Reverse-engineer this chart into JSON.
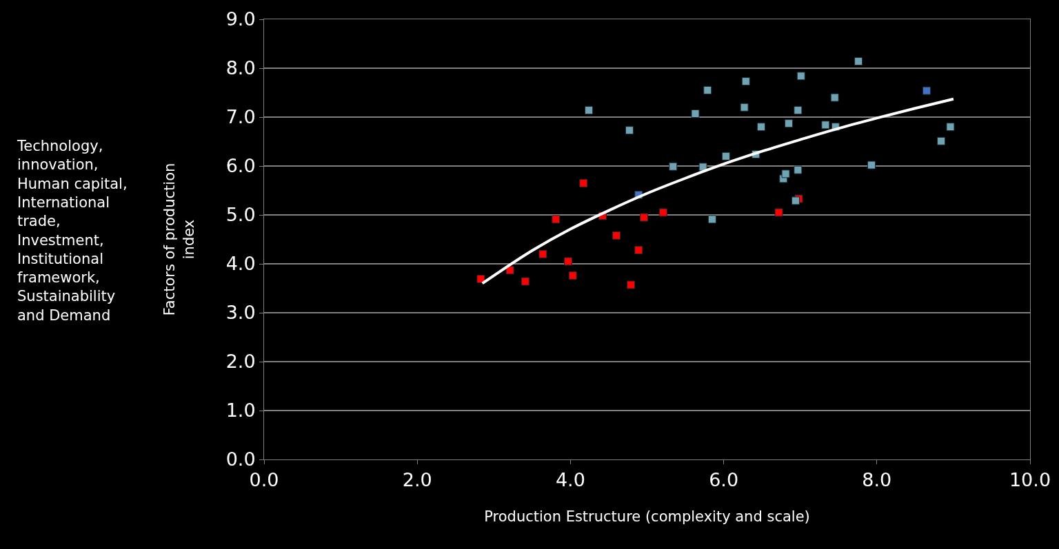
{
  "chart_data": {
    "type": "scatter",
    "xlabel": "Production Estructure (complexity and scale)",
    "ylabel": "Factors of production\nindex",
    "annotations": [
      "Technology,\ninnovation,\nHuman capital,\nInternational\ntrade,\nInvestment,\nInstitutional\nframework,\nSustainability\nand Demand"
    ],
    "xlim": [
      0,
      10
    ],
    "xticks": [
      {
        "value": 0,
        "label": "0.0"
      },
      {
        "value": 2,
        "label": "2.0"
      },
      {
        "value": 4,
        "label": "4.0"
      },
      {
        "value": 6,
        "label": "6.0"
      },
      {
        "value": 8,
        "label": "8.0"
      },
      {
        "value": 10,
        "label": "10.0"
      }
    ],
    "ylim": [
      0,
      9
    ],
    "yticks": [
      {
        "value": 0,
        "label": "0.0"
      },
      {
        "value": 1,
        "label": "1.0"
      },
      {
        "value": 2,
        "label": "2.0"
      },
      {
        "value": 3,
        "label": "3.0"
      },
      {
        "value": 4,
        "label": "4.0"
      },
      {
        "value": 5,
        "label": "5.0"
      },
      {
        "value": 6,
        "label": "6.0"
      },
      {
        "value": 7,
        "label": "7.0"
      },
      {
        "value": 8,
        "label": "8.0"
      },
      {
        "value": 9,
        "label": "9.0"
      }
    ],
    "grid": "y",
    "marker": "square",
    "series": [
      {
        "color": "#ff0000",
        "x": [
          2.83,
          3.21,
          3.41,
          3.64,
          3.81,
          3.97,
          4.03,
          4.17,
          4.42,
          4.6,
          4.79,
          4.89,
          4.96,
          5.21,
          6.72,
          6.98
        ],
        "values": [
          3.69,
          3.87,
          3.64,
          4.2,
          4.91,
          4.05,
          3.76,
          5.65,
          4.98,
          4.58,
          3.57,
          4.28,
          4.95,
          5.05,
          5.05,
          5.33
        ]
      },
      {
        "color": "#70a4b4",
        "x": [
          4.24,
          4.77,
          5.34,
          5.63,
          5.73,
          5.79,
          5.85,
          6.03,
          6.27,
          6.29,
          6.42,
          6.49,
          6.78,
          6.81,
          6.85,
          6.94,
          6.97,
          6.97,
          7.01,
          7.33,
          7.45,
          7.46,
          7.76,
          7.93,
          8.84,
          8.96
        ],
        "values": [
          7.14,
          6.73,
          5.99,
          7.07,
          5.98,
          7.55,
          4.91,
          6.2,
          7.2,
          7.73,
          6.24,
          6.8,
          5.74,
          5.84,
          6.87,
          5.29,
          5.92,
          7.14,
          7.84,
          6.84,
          7.4,
          6.8,
          8.14,
          6.02,
          6.51,
          6.8
        ]
      },
      {
        "color": "#4472c4",
        "x": [
          4.89,
          8.65
        ],
        "values": [
          5.41,
          7.54
        ]
      },
      {
        "type": "line",
        "color": "#ffffff",
        "marker": "none",
        "x": [
          2.85,
          3,
          3.5,
          4,
          4.5,
          5,
          5.5,
          6,
          6.5,
          7,
          7.5,
          8,
          8.5,
          9
        ],
        "values": [
          3.6,
          3.76,
          4.27,
          4.71,
          5.09,
          5.44,
          5.75,
          6.04,
          6.3,
          6.54,
          6.77,
          6.98,
          7.18,
          7.37
        ]
      }
    ]
  }
}
